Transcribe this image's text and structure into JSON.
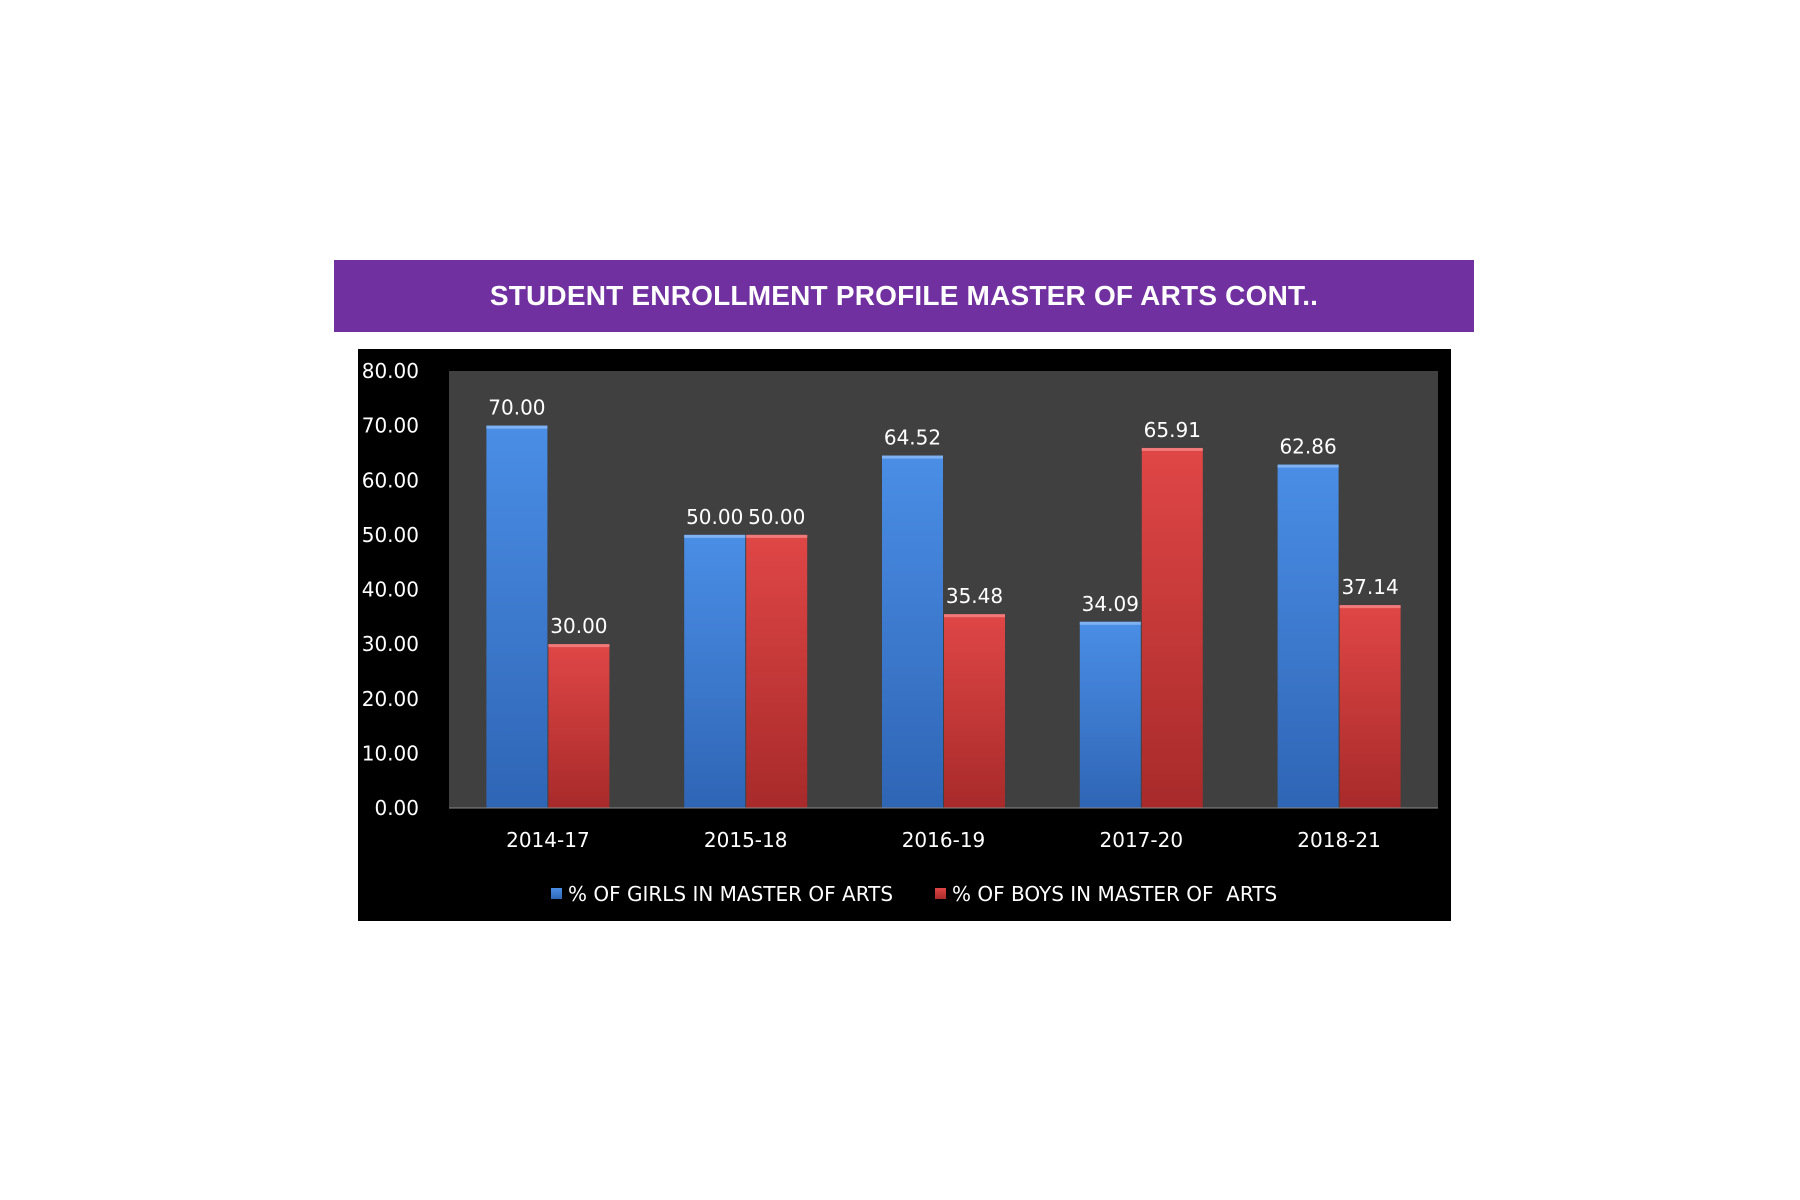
{
  "title": "STUDENT ENROLLMENT PROFILE MASTER OF ARTS CONT..",
  "colors": {
    "banner": "#7030a0",
    "chart_background": "#000000",
    "plot_background": "#404040",
    "girls": "#3d7fd8",
    "boys": "#d23c3c",
    "text": "#ffffff"
  },
  "chart_data": {
    "type": "bar",
    "categories": [
      "2014-17",
      "2015-18",
      "2016-19",
      "2017-20",
      "2018-21"
    ],
    "series": [
      {
        "name": "% OF GIRLS IN MASTER OF ARTS",
        "values": [
          70.0,
          50.0,
          64.52,
          34.09,
          62.86
        ]
      },
      {
        "name": "% OF BOYS IN MASTER OF  ARTS",
        "values": [
          30.0,
          50.0,
          35.48,
          65.91,
          37.14
        ]
      }
    ],
    "yticks": [
      "0.00",
      "10.00",
      "20.00",
      "30.00",
      "40.00",
      "50.00",
      "60.00",
      "70.00",
      "80.00"
    ],
    "ylim": [
      0,
      80
    ],
    "data_labels": [
      [
        "70.00",
        "50.00",
        "64.52",
        "34.09",
        "62.86"
      ],
      [
        "30.00",
        "50.00",
        "35.48",
        "65.91",
        "37.14"
      ]
    ],
    "legend_position": "bottom",
    "grid": false
  }
}
